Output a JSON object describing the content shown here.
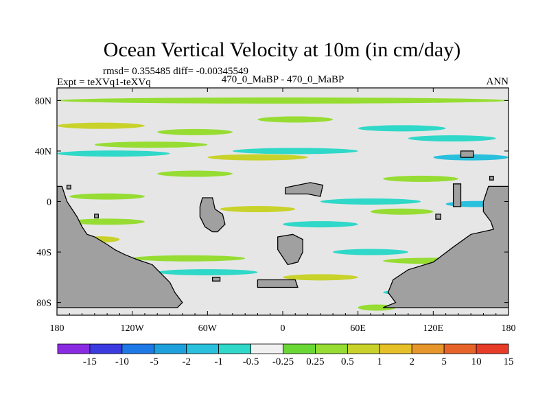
{
  "chart_data": {
    "type": "heatmap",
    "title": "Ocean Vertical Velocity at 10m (in cm/day)",
    "stats_line": "rmsd= 0.355485 diff= -0.00345549",
    "experiment_label": "Expt = teXVq1-teXVq",
    "case_label": "470_0_MaBP - 470_0_MaBP",
    "season_label": "ANN",
    "xlim": [
      -180,
      180
    ],
    "ylim": [
      -90,
      90
    ],
    "x_ticks": [
      {
        "value": -180,
        "label": "180"
      },
      {
        "value": -120,
        "label": "120W"
      },
      {
        "value": -60,
        "label": "60W"
      },
      {
        "value": 0,
        "label": "0"
      },
      {
        "value": 60,
        "label": "60E"
      },
      {
        "value": 120,
        "label": "120E"
      },
      {
        "value": 180,
        "label": "180"
      }
    ],
    "y_ticks": [
      {
        "value": 80,
        "label": "80N"
      },
      {
        "value": 40,
        "label": "40N"
      },
      {
        "value": 0,
        "label": "0"
      },
      {
        "value": -40,
        "label": "40S"
      },
      {
        "value": -80,
        "label": "80S"
      }
    ],
    "colorbar": {
      "colors": [
        "#8a2be2",
        "#3b3be0",
        "#1e78e6",
        "#1ea0dc",
        "#28c0dc",
        "#2fd8c8",
        "#f0f0f0",
        "#6ad834",
        "#96dc32",
        "#c8d22a",
        "#e6c028",
        "#e6962a",
        "#e6642a",
        "#e63c28"
      ],
      "labels": [
        "-15",
        "-10",
        "-5",
        "-2",
        "-1",
        "-0.5",
        "-0.25",
        "0.25",
        "0.5",
        "1",
        "2",
        "5",
        "10",
        "15"
      ]
    },
    "colors": {
      "land": "#a0a0a0",
      "background": "#e6e6e6"
    },
    "features": [
      {
        "type": "band",
        "lat": 80,
        "lon0": -180,
        "lon1": 180,
        "level": "0.5"
      },
      {
        "type": "band",
        "lat": 60,
        "lon0": -180,
        "lon1": -110,
        "level": "1"
      },
      {
        "type": "band",
        "lat": 55,
        "lon0": -100,
        "lon1": -40,
        "level": "0.5"
      },
      {
        "type": "band",
        "lat": 65,
        "lon0": -20,
        "lon1": 40,
        "level": "0.5"
      },
      {
        "type": "band",
        "lat": 58,
        "lon0": 60,
        "lon1": 130,
        "level": "-0.5"
      },
      {
        "type": "band",
        "lat": 50,
        "lon0": 100,
        "lon1": 170,
        "level": "-0.5"
      },
      {
        "type": "band",
        "lat": 45,
        "lon0": -150,
        "lon1": -60,
        "level": "0.5"
      },
      {
        "type": "band",
        "lat": 38,
        "lon0": -180,
        "lon1": -90,
        "level": "-0.5"
      },
      {
        "type": "band",
        "lat": 40,
        "lon0": -40,
        "lon1": 60,
        "level": "-0.5"
      },
      {
        "type": "band",
        "lat": 35,
        "lon0": 120,
        "lon1": 180,
        "level": "-1"
      },
      {
        "type": "band",
        "lat": 35,
        "lon0": -60,
        "lon1": 20,
        "level": "1"
      },
      {
        "type": "band",
        "lat": 22,
        "lon0": -100,
        "lon1": -40,
        "level": "0.5"
      },
      {
        "type": "band",
        "lat": 18,
        "lon0": 80,
        "lon1": 140,
        "level": "0.5"
      },
      {
        "type": "band",
        "lat": 4,
        "lon0": -170,
        "lon1": -110,
        "level": "0.5"
      },
      {
        "type": "band",
        "lat": 0,
        "lon0": 30,
        "lon1": 110,
        "level": "-0.5"
      },
      {
        "type": "band",
        "lat": -2,
        "lon0": 130,
        "lon1": 180,
        "level": "-1"
      },
      {
        "type": "band",
        "lat": -6,
        "lon0": -50,
        "lon1": 10,
        "level": "1"
      },
      {
        "type": "band",
        "lat": -8,
        "lon0": 70,
        "lon1": 120,
        "level": "0.5"
      },
      {
        "type": "band",
        "lat": -16,
        "lon0": -170,
        "lon1": -110,
        "level": "0.5"
      },
      {
        "type": "band",
        "lat": -18,
        "lon0": 0,
        "lon1": 60,
        "level": "-0.5"
      },
      {
        "type": "band",
        "lat": -30,
        "lon0": -160,
        "lon1": -130,
        "level": "1"
      },
      {
        "type": "band",
        "lat": -40,
        "lon0": 40,
        "lon1": 100,
        "level": "-0.5"
      },
      {
        "type": "band",
        "lat": -45,
        "lon0": -120,
        "lon1": -30,
        "level": "0.5"
      },
      {
        "type": "band",
        "lat": -47,
        "lon0": 80,
        "lon1": 160,
        "level": "0.5"
      },
      {
        "type": "band",
        "lat": -56,
        "lon0": -100,
        "lon1": -20,
        "level": "-0.5"
      },
      {
        "type": "band",
        "lat": -60,
        "lon0": 0,
        "lon1": 60,
        "level": "1"
      },
      {
        "type": "band",
        "lat": -72,
        "lon0": 80,
        "lon1": 140,
        "level": "-0.5"
      },
      {
        "type": "band",
        "lat": -84,
        "lon0": 60,
        "lon1": 90,
        "level": "0.5"
      }
    ],
    "land": [
      {
        "name": "north-america-west",
        "coords": [
          [
            -180,
            12
          ],
          [
            -176,
            12
          ],
          [
            -172,
            0
          ],
          [
            -168,
            -6
          ],
          [
            -164,
            -12
          ],
          [
            -160,
            -20
          ],
          [
            -156,
            -26
          ],
          [
            -150,
            -28
          ],
          [
            -140,
            -34
          ],
          [
            -134,
            -38
          ],
          [
            -126,
            -42
          ],
          [
            -116,
            -46
          ],
          [
            -104,
            -50
          ],
          [
            -96,
            -58
          ],
          [
            -90,
            -64
          ],
          [
            -86,
            -72
          ],
          [
            -80,
            -80
          ],
          [
            -84,
            -84
          ],
          [
            -160,
            -84
          ],
          [
            -180,
            -84
          ]
        ]
      },
      {
        "name": "south-america",
        "coords": [
          [
            -64,
            3
          ],
          [
            -56,
            3
          ],
          [
            -54,
            -6
          ],
          [
            -48,
            -10
          ],
          [
            -46,
            -18
          ],
          [
            -52,
            -24
          ],
          [
            -56,
            -24
          ],
          [
            -62,
            -20
          ],
          [
            -66,
            -12
          ],
          [
            -66,
            -4
          ]
        ]
      },
      {
        "name": "africa-blob",
        "coords": [
          [
            -4,
            -28
          ],
          [
            8,
            -26
          ],
          [
            16,
            -30
          ],
          [
            16,
            -40
          ],
          [
            12,
            -48
          ],
          [
            4,
            -50
          ],
          [
            0,
            -44
          ],
          [
            -4,
            -38
          ]
        ]
      },
      {
        "name": "eurasia-island",
        "coords": [
          [
            2,
            11
          ],
          [
            22,
            15
          ],
          [
            32,
            13
          ],
          [
            30,
            4
          ],
          [
            20,
            6
          ],
          [
            10,
            6
          ],
          [
            2,
            6
          ]
        ]
      },
      {
        "name": "east-continent",
        "coords": [
          [
            180,
            12
          ],
          [
            164,
            12
          ],
          [
            160,
            0
          ],
          [
            160,
            -8
          ],
          [
            166,
            -16
          ],
          [
            168,
            -22
          ],
          [
            150,
            -26
          ],
          [
            136,
            -36
          ],
          [
            120,
            -48
          ],
          [
            100,
            -54
          ],
          [
            88,
            -62
          ],
          [
            84,
            -72
          ],
          [
            90,
            -80
          ],
          [
            80,
            -84
          ],
          [
            180,
            -84
          ]
        ]
      },
      {
        "name": "arabia-strip",
        "coords": [
          [
            136,
            14
          ],
          [
            142,
            14
          ],
          [
            142,
            -4
          ],
          [
            136,
            -4
          ]
        ]
      },
      {
        "name": "small-island-a",
        "coords": [
          [
            142,
            40
          ],
          [
            152,
            40
          ],
          [
            152,
            35
          ],
          [
            142,
            35
          ]
        ]
      },
      {
        "name": "small-island-b",
        "coords": [
          [
            -56,
            -60
          ],
          [
            -50,
            -60
          ],
          [
            -50,
            -63
          ],
          [
            -56,
            -63
          ]
        ]
      },
      {
        "name": "south-strip",
        "coords": [
          [
            -20,
            -62
          ],
          [
            10,
            -62
          ],
          [
            12,
            -68
          ],
          [
            -20,
            -68
          ]
        ]
      },
      {
        "name": "islet-1",
        "coords": [
          [
            -172,
            13
          ],
          [
            -169,
            13
          ],
          [
            -169,
            10
          ],
          [
            -172,
            10
          ]
        ]
      },
      {
        "name": "islet-2",
        "coords": [
          [
            -150,
            -10
          ],
          [
            -147,
            -10
          ],
          [
            -147,
            -13
          ],
          [
            -150,
            -13
          ]
        ]
      },
      {
        "name": "islet-3",
        "coords": [
          [
            122,
            -10
          ],
          [
            126,
            -10
          ],
          [
            126,
            -14
          ],
          [
            122,
            -14
          ]
        ]
      },
      {
        "name": "islet-4",
        "coords": [
          [
            165,
            20
          ],
          [
            168,
            20
          ],
          [
            168,
            17
          ],
          [
            165,
            17
          ]
        ]
      }
    ]
  }
}
